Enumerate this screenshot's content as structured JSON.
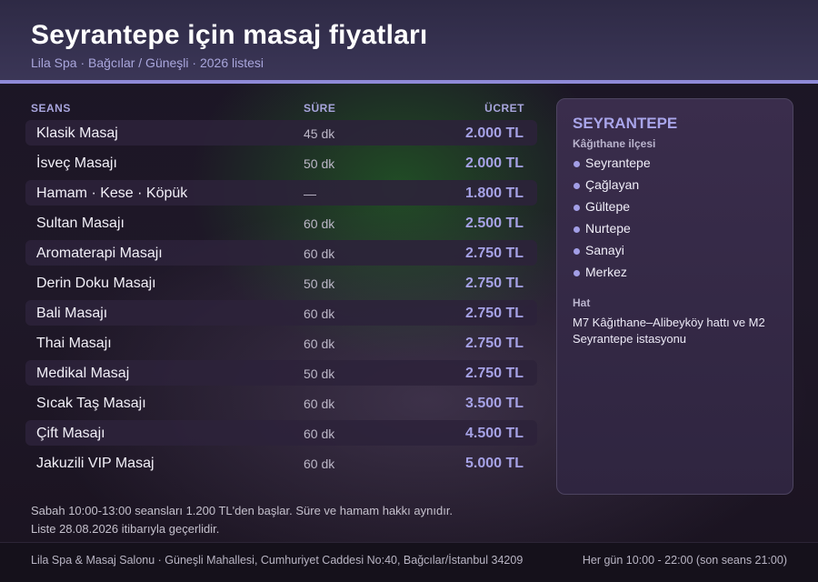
{
  "header": {
    "title": "Seyrantepe için masaj fiyatları",
    "subtitle": "Lila Spa · Bağcılar / Güneşli · 2026 listesi"
  },
  "table": {
    "columns": {
      "seans": "SEANS",
      "sure": "SÜRE",
      "ucret": "ÜCRET"
    },
    "rows": [
      {
        "name": "Klasik Masaj",
        "duration": "45 dk",
        "price": "2.000 TL"
      },
      {
        "name": "İsveç Masajı",
        "duration": "50 dk",
        "price": "2.000 TL"
      },
      {
        "name": "Hamam · Kese · Köpük",
        "duration": "—",
        "price": "1.800 TL"
      },
      {
        "name": "Sultan Masajı",
        "duration": "60 dk",
        "price": "2.500 TL"
      },
      {
        "name": "Aromaterapi Masajı",
        "duration": "60 dk",
        "price": "2.750 TL"
      },
      {
        "name": "Derin Doku Masajı",
        "duration": "50 dk",
        "price": "2.750 TL"
      },
      {
        "name": "Bali Masajı",
        "duration": "60 dk",
        "price": "2.750 TL"
      },
      {
        "name": "Thai Masajı",
        "duration": "60 dk",
        "price": "2.750 TL"
      },
      {
        "name": "Medikal Masaj",
        "duration": "50 dk",
        "price": "2.750 TL"
      },
      {
        "name": "Sıcak Taş Masajı",
        "duration": "60 dk",
        "price": "3.500 TL"
      },
      {
        "name": "Çift Masajı",
        "duration": "60 dk",
        "price": "4.500 TL"
      },
      {
        "name": "Jakuzili VIP Masaj",
        "duration": "60 dk",
        "price": "5.000 TL"
      }
    ]
  },
  "side": {
    "title": "SEYRANTEPE",
    "district": "Kâğıthane ilçesi",
    "neighborhoods": [
      "Seyrantepe",
      "Çağlayan",
      "Gültepe",
      "Nurtepe",
      "Sanayi",
      "Merkez"
    ],
    "hat_label": "Hat",
    "hat_text": "M7 Kâğıthane–Alibeyköy hattı ve M2 Seyrantepe istasyonu"
  },
  "notes": {
    "line1": "Sabah 10:00-13:00 seansları 1.200 TL'den başlar. Süre ve hamam hakkı aynıdır.",
    "line2": "Liste 28.08.2026 itibarıyla geçerlidir."
  },
  "footer": {
    "address": "Lila Spa & Masaj Salonu · Güneşli Mahallesi, Cumhuriyet Caddesi No:40, Bağcılar/İstanbul 34209",
    "hours": "Her gün 10:00 - 22:00 (son seans 21:00)"
  },
  "colors": {
    "accent": "#8f8ad8",
    "price": "#a6a2e6",
    "header_bg": "#3b3657"
  }
}
